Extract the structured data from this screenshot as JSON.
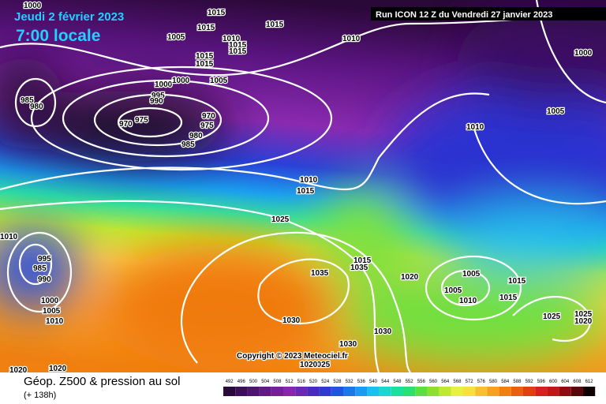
{
  "header": {
    "date": "Jeudi 2 février 2023",
    "time": "7:00 locale",
    "run": "Run ICON 12 Z du Vendredi 27 janvier 2023"
  },
  "copyright": "Copyright © 2023 Meteociel.fr",
  "footer": {
    "title": "Géop. Z500 & pression au sol",
    "lead": "(+ 138h)"
  },
  "isobar_labels": [
    "1000",
    "1015",
    "1015",
    "1005",
    "1015",
    "1010",
    "1015",
    "1015",
    "1010",
    "1000",
    "1015",
    "1015",
    "1005",
    "1000",
    "1000",
    "995",
    "990",
    "985",
    "980",
    "970",
    "975",
    "970",
    "975",
    "980",
    "985",
    "1005",
    "1010",
    "1010",
    "1015",
    "1025",
    "1010",
    "995",
    "985",
    "990",
    "1015",
    "1035",
    "1035",
    "1020",
    "1005",
    "1015",
    "1005",
    "1010",
    "1015",
    "1000",
    "1005",
    "1010",
    "1030",
    "1025",
    "1025",
    "1020",
    "1030",
    "1030",
    "1020",
    "1020",
    "1025",
    "1020"
  ],
  "legend": {
    "ticks": [
      492,
      496,
      500,
      504,
      508,
      512,
      516,
      520,
      524,
      528,
      532,
      536,
      540,
      544,
      548,
      552,
      556,
      560,
      564,
      568,
      572,
      576,
      580,
      584,
      588,
      592,
      596,
      600,
      604,
      608,
      612
    ],
    "colors": [
      "#2a0a3a",
      "#3c0f58",
      "#4d1470",
      "#611a86",
      "#761f9a",
      "#8a25ad",
      "#6b28b5",
      "#4a2bc0",
      "#2f3ad0",
      "#1f55e0",
      "#1a78ec",
      "#1a9cf4",
      "#1ac0f0",
      "#1ad8d0",
      "#1ae0a0",
      "#2ae070",
      "#5ae040",
      "#8ee030",
      "#c0e830",
      "#e8f040",
      "#f8e040",
      "#f8c030",
      "#f8a020",
      "#f08010",
      "#e86010",
      "#e04010",
      "#d82020",
      "#c01818",
      "#900c10",
      "#580808",
      "#100000"
    ]
  }
}
